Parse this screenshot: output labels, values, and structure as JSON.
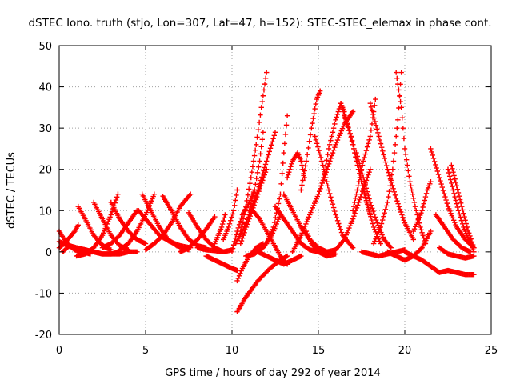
{
  "chart_data": {
    "type": "scatter",
    "title": "dSTEC Iono. truth (stjo, Lon=307, Lat=47, h=152): STEC-STEC_elemax in phase cont.",
    "xlabel": "GPS time / hours of day 292 of year 2014",
    "ylabel": "dSTEC  / TECUs",
    "xlim": [
      0,
      25
    ],
    "ylim": [
      -20,
      50
    ],
    "xticks": [
      0,
      5,
      10,
      15,
      20,
      25
    ],
    "yticks": [
      -20,
      -10,
      0,
      10,
      20,
      30,
      40,
      50
    ],
    "xtick_labels": [
      "0",
      "5",
      "10",
      "15",
      "20",
      "25"
    ],
    "ytick_labels": [
      "-20",
      "-10",
      "0",
      "10",
      "20",
      "30",
      "40",
      "50"
    ],
    "grid": true,
    "legend": "none",
    "marker": "+",
    "series_color": "#ff0000",
    "series": [
      {
        "x": [
          0.0,
          0.3,
          0.6,
          0.9,
          1.3,
          1.8
        ],
        "y": [
          5,
          3,
          1.5,
          0.5,
          0,
          -0.5
        ]
      },
      {
        "x": [
          0.2,
          0.6,
          1.0,
          1.5,
          2.0,
          2.5,
          3.0,
          3.5
        ],
        "y": [
          0,
          1.5,
          1,
          0.5,
          0,
          -0.5,
          -0.5,
          0
        ]
      },
      {
        "x": [
          0.0,
          0.5,
          1.0,
          1.5,
          2.0,
          2.5,
          3.0,
          3.5,
          4.0,
          4.5
        ],
        "y": [
          2.5,
          1.5,
          1,
          0.5,
          0,
          -0.5,
          -0.5,
          -0.5,
          0,
          0
        ]
      },
      {
        "x": [
          0.0,
          0.3,
          0.6,
          0.9,
          1.1
        ],
        "y": [
          1,
          2,
          3.5,
          5,
          6.5
        ]
      },
      {
        "x": [
          1.1,
          1.5,
          2.0,
          2.4,
          2.7,
          3.0
        ],
        "y": [
          11,
          8,
          4,
          2,
          1,
          0.5
        ]
      },
      {
        "x": [
          1.0,
          1.5,
          2.0,
          2.5,
          3.0,
          3.4
        ],
        "y": [
          -1,
          -0.5,
          1,
          4,
          9,
          14
        ]
      },
      {
        "x": [
          2.0,
          2.5,
          3.0,
          3.5,
          4.0
        ],
        "y": [
          12,
          8,
          4,
          1.5,
          0.5
        ]
      },
      {
        "x": [
          2.5,
          3.0,
          3.5,
          4.0,
          4.5
        ],
        "y": [
          1,
          2,
          4,
          7,
          10
        ]
      },
      {
        "x": [
          3.0,
          3.5,
          4.0,
          4.5,
          5.0
        ],
        "y": [
          12,
          8,
          5,
          3,
          2
        ]
      },
      {
        "x": [
          3.5,
          4.0,
          4.5,
          5.0,
          5.5
        ],
        "y": [
          0.5,
          2,
          5,
          9,
          14
        ]
      },
      {
        "x": [
          4.8,
          5.3,
          5.8,
          6.3,
          6.8,
          7.5
        ],
        "y": [
          14,
          10,
          6,
          3,
          1.5,
          0.5
        ]
      },
      {
        "x": [
          4.6,
          5.2,
          5.8,
          6.4,
          7.0,
          7.6
        ],
        "y": [
          10,
          7,
          4,
          2.5,
          1.5,
          1
        ]
      },
      {
        "x": [
          5.0,
          5.5,
          6.0,
          6.5,
          7.0,
          7.6
        ],
        "y": [
          0.5,
          2,
          4,
          7,
          11,
          14
        ]
      },
      {
        "x": [
          6.0,
          6.5,
          7.0,
          7.5,
          8.0,
          8.5
        ],
        "y": [
          13.5,
          10,
          6,
          3,
          1.5,
          1
        ]
      },
      {
        "x": [
          7.0,
          7.5,
          8.0,
          8.5,
          9.0
        ],
        "y": [
          0,
          1,
          3,
          5.5,
          8.5
        ]
      },
      {
        "x": [
          7.5,
          8.0,
          8.5,
          9.0,
          9.5
        ],
        "y": [
          9.5,
          6,
          3,
          1,
          0
        ]
      },
      {
        "x": [
          8.0,
          8.5,
          9.0,
          9.5,
          10.0
        ],
        "y": [
          1,
          0.5,
          0.3,
          0,
          0.5
        ]
      },
      {
        "x": [
          8.5,
          9.0,
          9.5,
          10.0,
          10.3
        ],
        "y": [
          -1,
          -2,
          -3,
          -4,
          -4.5
        ]
      },
      {
        "x": [
          9.0,
          9.2,
          9.4,
          9.6
        ],
        "y": [
          2,
          4,
          6,
          9
        ]
      },
      {
        "x": [
          9.5,
          9.8,
          10.1,
          10.3
        ],
        "y": [
          3,
          6,
          10,
          15
        ]
      },
      {
        "x": [
          10.3,
          10.8,
          11.5,
          12.2,
          12.8,
          13.2
        ],
        "y": [
          -14.5,
          -11,
          -7,
          -4,
          -2,
          -1
        ]
      },
      {
        "x": [
          10.3,
          10.6,
          11.0,
          11.4,
          11.8
        ],
        "y": [
          -7,
          -4,
          -1,
          1,
          2
        ]
      },
      {
        "x": [
          10.0,
          10.3,
          10.6,
          11.0,
          11.3
        ],
        "y": [
          0,
          5,
          9,
          12,
          15
        ]
      },
      {
        "x": [
          10.2,
          10.6,
          11.0,
          11.5,
          12.0,
          12.5
        ],
        "y": [
          2,
          5,
          9,
          15,
          22,
          29
        ]
      },
      {
        "x": [
          10.5,
          11.0,
          11.5,
          12.0
        ],
        "y": [
          2,
          8,
          14,
          20
        ]
      },
      {
        "x": [
          10.5,
          10.8,
          11.1,
          11.4,
          11.7,
          12.0
        ],
        "y": [
          5,
          11,
          18,
          26,
          35,
          43.5
        ]
      },
      {
        "x": [
          11.0,
          11.3,
          11.6,
          11.8
        ],
        "y": [
          10,
          15,
          22,
          29
        ]
      },
      {
        "x": [
          10.8,
          11.3,
          11.8,
          12.3,
          12.8
        ],
        "y": [
          -1,
          -0.5,
          1,
          4,
          9
        ]
      },
      {
        "x": [
          11.2,
          11.6,
          12.0,
          12.4,
          12.8,
          13.2
        ],
        "y": [
          10,
          8,
          5,
          2,
          -1,
          -3
        ]
      },
      {
        "x": [
          11.5,
          12.0,
          12.5,
          13.0,
          13.5,
          14.0
        ],
        "y": [
          0,
          -1,
          -2,
          -3,
          -2,
          -1
        ]
      },
      {
        "x": [
          12.0,
          12.4,
          12.8,
          13.0,
          13.2
        ],
        "y": [
          2,
          6,
          14,
          24,
          33
        ]
      },
      {
        "x": [
          12.5,
          13.0,
          13.5,
          14.0,
          14.5,
          15.0
        ],
        "y": [
          11,
          8,
          5,
          2,
          0.5,
          0
        ]
      },
      {
        "x": [
          13.2,
          13.5,
          13.8,
          14.0,
          14.2
        ],
        "y": [
          18,
          22,
          24,
          22,
          18
        ]
      },
      {
        "x": [
          13.0,
          13.5,
          14.0,
          14.5,
          15.0,
          15.5
        ],
        "y": [
          14,
          10,
          6,
          3,
          1,
          0
        ]
      },
      {
        "x": [
          13.5,
          14.0,
          14.5,
          15.0,
          15.5
        ],
        "y": [
          0,
          4,
          9,
          14,
          20
        ]
      },
      {
        "x": [
          14.0,
          14.3,
          14.6,
          14.9,
          15.1
        ],
        "y": [
          15,
          22,
          30,
          37,
          39
        ]
      },
      {
        "x": [
          14.3,
          14.6,
          15.0,
          15.5,
          16.0
        ],
        "y": [
          5,
          2,
          0,
          -1,
          -0.5
        ]
      },
      {
        "x": [
          14.8,
          15.2,
          15.6,
          16.0,
          16.4,
          17.0
        ],
        "y": [
          28,
          22,
          15,
          9,
          4,
          1
        ]
      },
      {
        "x": [
          15.0,
          15.5,
          16.0,
          16.5,
          17.0
        ],
        "y": [
          14,
          20,
          26,
          31,
          34
        ]
      },
      {
        "x": [
          15.3,
          15.6,
          16.0,
          16.3,
          16.5
        ],
        "y": [
          18,
          25,
          32,
          36,
          34
        ]
      },
      {
        "x": [
          15.5,
          16.0,
          16.5,
          17.0,
          17.5,
          18.0
        ],
        "y": [
          0,
          0.5,
          3,
          8,
          14,
          20
        ]
      },
      {
        "x": [
          16.3,
          16.6,
          17.0,
          17.4,
          17.8,
          18.2,
          18.6
        ],
        "y": [
          36,
          32,
          26,
          19,
          12,
          6,
          2
        ]
      },
      {
        "x": [
          16.5,
          16.9,
          17.2,
          17.6,
          18.0
        ],
        "y": [
          33,
          28,
          22,
          15,
          9
        ]
      },
      {
        "x": [
          17.0,
          17.3,
          17.6,
          18.0,
          18.3
        ],
        "y": [
          10,
          16,
          22,
          28,
          37
        ]
      },
      {
        "x": [
          17.5,
          18.0,
          18.5,
          19.0,
          19.5,
          20.0
        ],
        "y": [
          0,
          -0.5,
          -1,
          -0.5,
          0,
          0.5
        ]
      },
      {
        "x": [
          17.2,
          17.6,
          18.0,
          18.4,
          18.8,
          19.2
        ],
        "y": [
          24,
          18,
          12,
          7,
          3,
          1
        ]
      },
      {
        "x": [
          18.0,
          18.5,
          19.0,
          19.5,
          20.0,
          20.5
        ],
        "y": [
          36,
          28,
          20,
          13,
          7,
          3
        ]
      },
      {
        "x": [
          18.2,
          18.6,
          19.0,
          19.3,
          19.6,
          19.8
        ],
        "y": [
          2,
          6,
          12,
          20,
          32,
          43.5
        ]
      },
      {
        "x": [
          19.5,
          19.8,
          20.0,
          20.3,
          20.6,
          20.9,
          21.2
        ],
        "y": [
          43.5,
          35,
          25,
          17,
          11,
          6,
          2
        ]
      },
      {
        "x": [
          19.0,
          19.5,
          20.0,
          20.5,
          21.0,
          21.5
        ],
        "y": [
          0,
          -1,
          -2,
          -1,
          1,
          5
        ]
      },
      {
        "x": [
          20.0,
          20.5,
          21.0,
          21.5,
          22.0,
          22.5,
          23.0,
          23.5,
          24.0
        ],
        "y": [
          0,
          -1,
          -2,
          -3.5,
          -5,
          -4.5,
          -5,
          -5.5,
          -5.5
        ]
      },
      {
        "x": [
          20.5,
          21.0,
          21.3,
          21.5
        ],
        "y": [
          5,
          10,
          15,
          17
        ]
      },
      {
        "x": [
          21.5,
          22.0,
          22.5,
          23.0,
          23.5,
          24.0
        ],
        "y": [
          25,
          18,
          11,
          6,
          3,
          1
        ]
      },
      {
        "x": [
          22.0,
          22.5,
          23.0,
          23.5,
          24.0
        ],
        "y": [
          1,
          -0.5,
          -1,
          -1.5,
          -1
        ]
      },
      {
        "x": [
          22.5,
          22.8,
          23.1,
          23.4,
          23.7,
          24.0
        ],
        "y": [
          20,
          15,
          10,
          6,
          3,
          0
        ]
      },
      {
        "x": [
          22.7,
          23.0,
          23.3,
          23.6,
          24.0
        ],
        "y": [
          21,
          16,
          11,
          6,
          1
        ]
      },
      {
        "x": [
          21.8,
          22.3,
          22.8,
          23.3,
          23.8
        ],
        "y": [
          9,
          6,
          3,
          1,
          0
        ]
      }
    ]
  }
}
